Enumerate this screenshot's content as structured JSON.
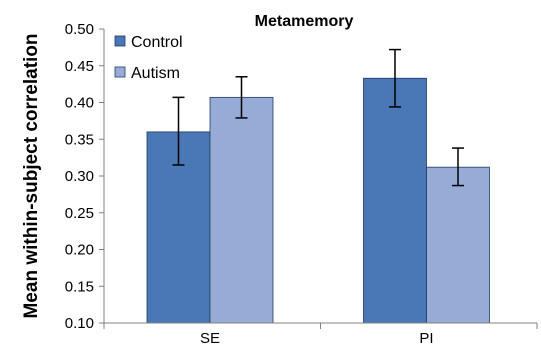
{
  "chart_data": {
    "type": "bar",
    "title": "Metamemory",
    "ylabel": "Mean within-subject correlation",
    "xlabel": "",
    "categories": [
      "SE",
      "PI"
    ],
    "ylim": [
      0.1,
      0.5
    ],
    "yticks": [
      "0.10",
      "0.15",
      "0.20",
      "0.25",
      "0.30",
      "0.35",
      "0.40",
      "0.45",
      "0.50"
    ],
    "grid": false,
    "legend_position": "top-left",
    "series": [
      {
        "name": "Control",
        "color": "#4a77b5",
        "values": [
          0.36,
          0.433
        ],
        "errors": [
          [
            0.315,
            0.407
          ],
          [
            0.394,
            0.472
          ]
        ]
      },
      {
        "name": "Autism",
        "color": "#96acd6",
        "values": [
          0.407,
          0.312
        ],
        "errors": [
          [
            0.379,
            0.435
          ],
          [
            0.287,
            0.338
          ]
        ]
      }
    ]
  }
}
